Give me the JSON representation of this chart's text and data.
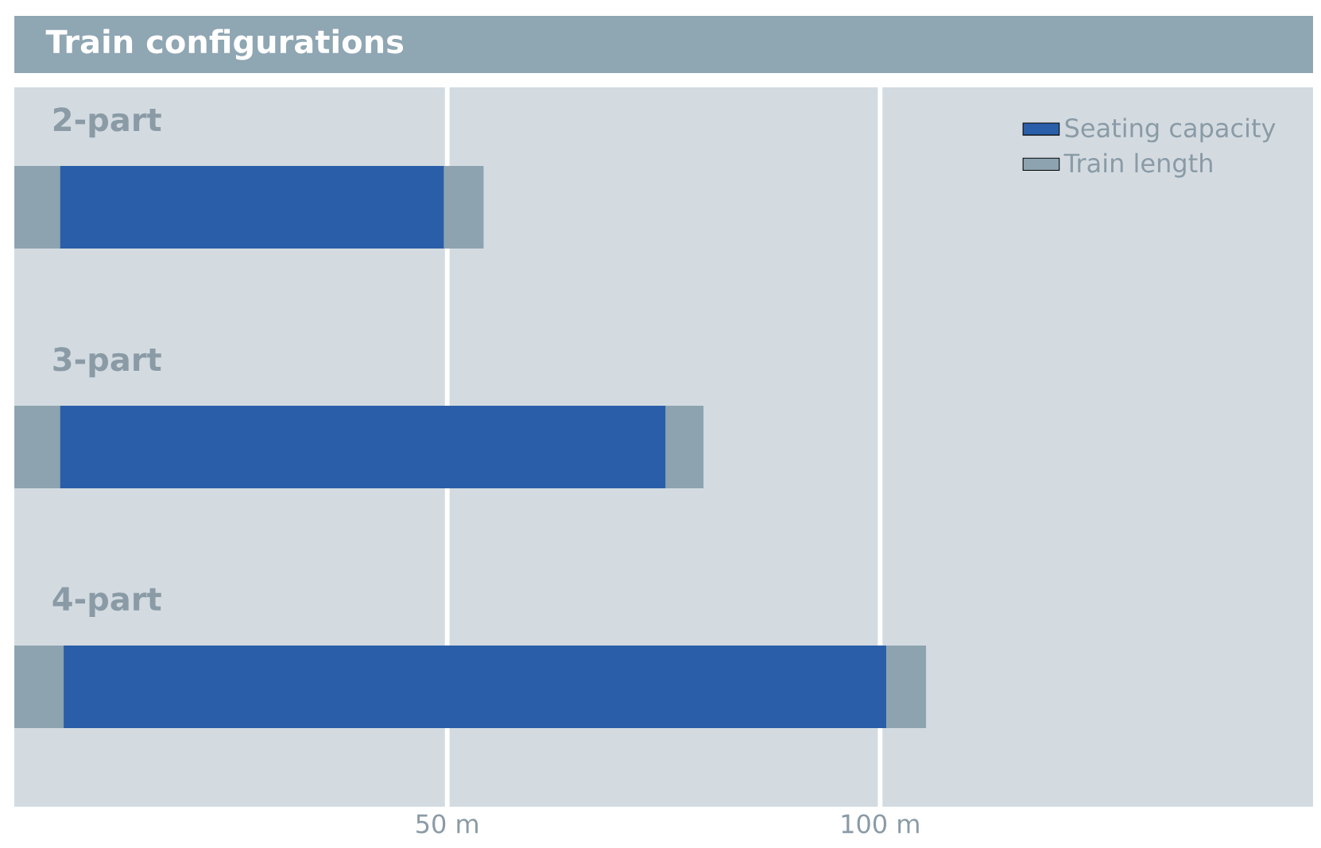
{
  "chart_data": {
    "type": "bar",
    "orientation": "horizontal",
    "title": "Train configurations",
    "categories": [
      "2-part",
      "3-part",
      "4-part"
    ],
    "series": [
      {
        "name": "Seating capacity",
        "color": "#2a5ea8",
        "values": [
          44.3,
          69.9,
          95.0
        ],
        "base": [
          5.3,
          5.3,
          5.7
        ]
      },
      {
        "name": "Train length",
        "color": "#8da4b0",
        "values": [
          54.2,
          79.6,
          105.3
        ]
      }
    ],
    "xlim": [
      0,
      150
    ],
    "xticks": [
      {
        "value": 50,
        "label": "50 m"
      },
      {
        "value": 100,
        "label": "100 m"
      }
    ],
    "grid": "x",
    "legend": "top right"
  }
}
